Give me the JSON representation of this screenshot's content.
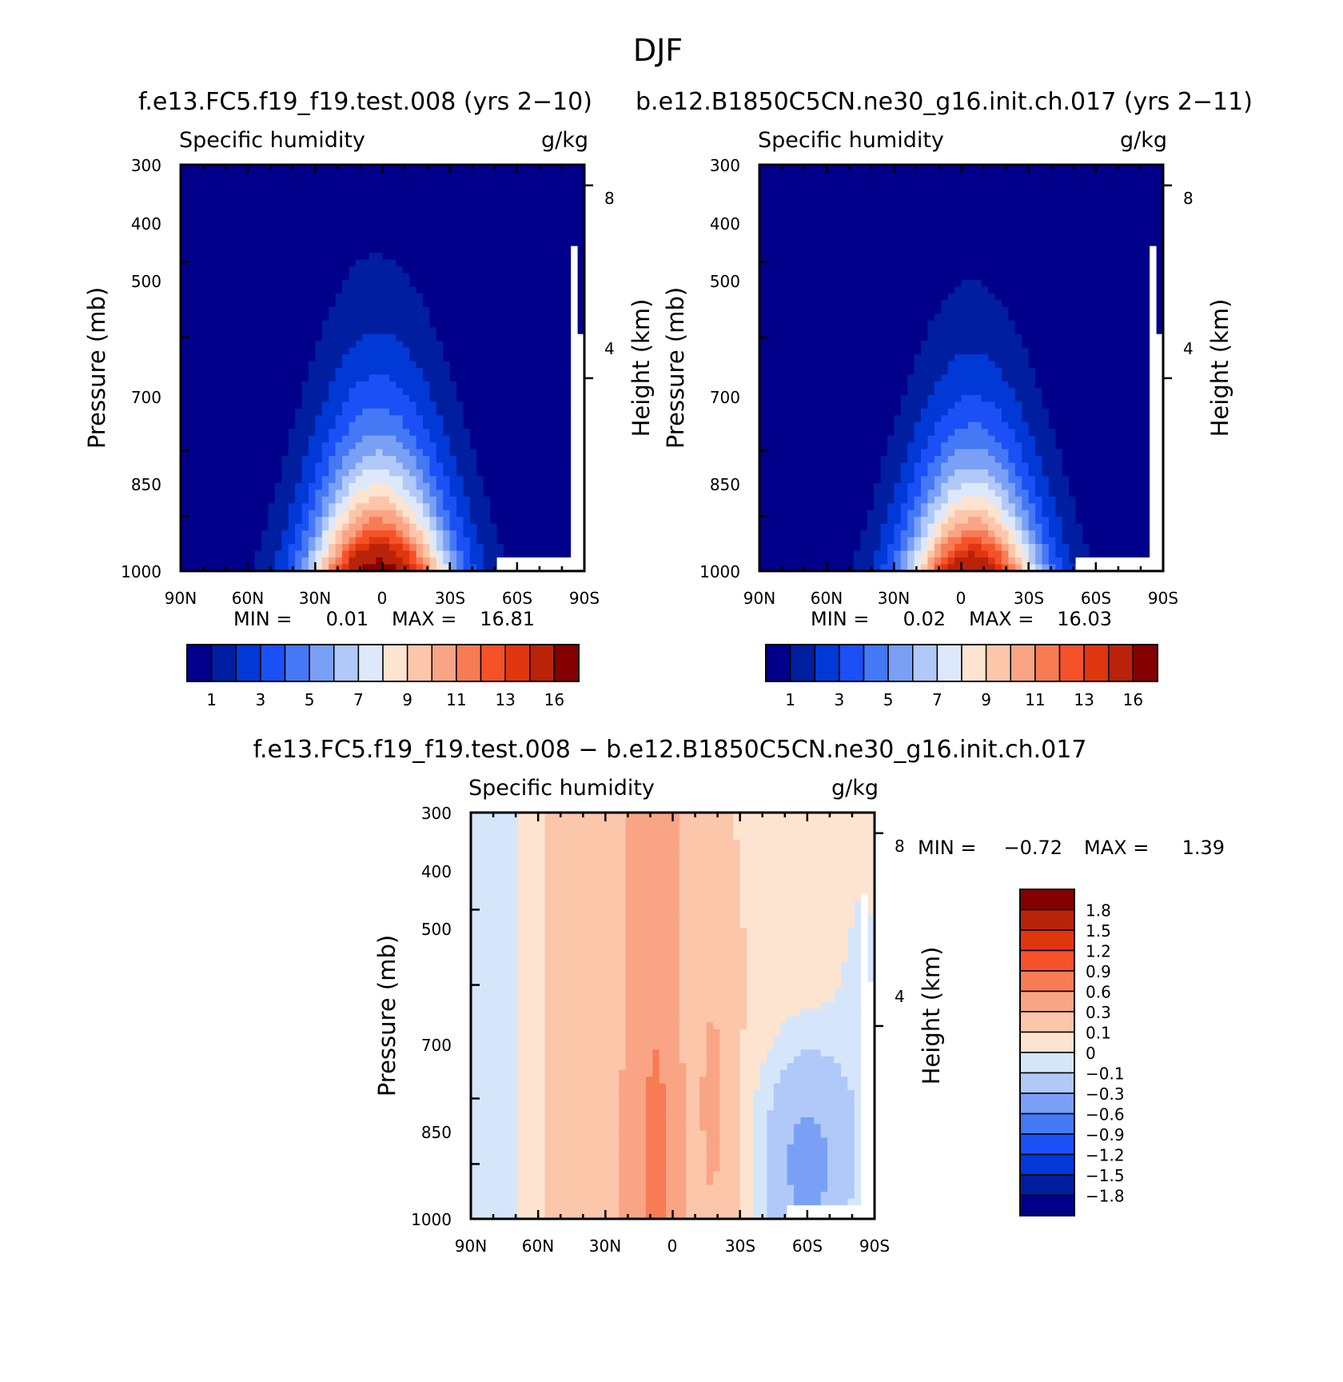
{
  "figure": {
    "season": "DJF",
    "title_left": "f.e13.FC5.f19_f19.test.008 (yrs 2−10)",
    "title_right": "b.e12.B1850C5CN.ne30_g16.init.ch.017 (yrs 2−11)",
    "title_diff": "f.e13.FC5.f19_f19.test.008 − b.e12.B1850C5CN.ne30_g16.init.ch.017"
  },
  "chart_data": [
    {
      "id": "panel-test",
      "type": "heatmap",
      "variable": "Specific humidity",
      "units": "g/kg",
      "xlabel": "",
      "ylabel": "Pressure (mb)",
      "ylabel_right": "Height (km)",
      "x_ticks": [
        "90N",
        "60N",
        "30N",
        "0",
        "30S",
        "60S",
        "90S"
      ],
      "y_ticks": [
        "300",
        "400",
        "500",
        "700",
        "850",
        "1000"
      ],
      "height_ticks": [
        "8",
        "4"
      ],
      "min_label": "MIN =",
      "min_value": "0.01",
      "max_label": "MAX =",
      "max_value": "16.81",
      "colorbar_labels": [
        "1",
        "3",
        "5",
        "7",
        "9",
        "11",
        "13",
        "16"
      ],
      "contour_levels": [
        1,
        2,
        3,
        4,
        5,
        6,
        7,
        8,
        9,
        10,
        11,
        12,
        13,
        14,
        16
      ],
      "peak_value": 16.81,
      "peak_lat": 0,
      "peak_pressure": 1000
    },
    {
      "id": "panel-control",
      "type": "heatmap",
      "variable": "Specific humidity",
      "units": "g/kg",
      "xlabel": "",
      "ylabel": "Pressure (mb)",
      "ylabel_right": "Height (km)",
      "x_ticks": [
        "90N",
        "60N",
        "30N",
        "0",
        "30S",
        "60S",
        "90S"
      ],
      "y_ticks": [
        "300",
        "400",
        "500",
        "700",
        "850",
        "1000"
      ],
      "height_ticks": [
        "8",
        "4"
      ],
      "min_label": "MIN =",
      "min_value": "0.02",
      "max_label": "MAX =",
      "max_value": "16.03",
      "colorbar_labels": [
        "1",
        "3",
        "5",
        "7",
        "9",
        "11",
        "13",
        "16"
      ],
      "contour_levels": [
        1,
        2,
        3,
        4,
        5,
        6,
        7,
        8,
        9,
        10,
        11,
        12,
        13,
        14,
        16
      ],
      "peak_value": 16.03,
      "peak_lat": -5,
      "peak_pressure": 1000
    },
    {
      "id": "panel-difference",
      "type": "heatmap",
      "variable": "Specific humidity",
      "units": "g/kg",
      "xlabel": "",
      "ylabel": "Pressure (mb)",
      "ylabel_right": "Height (km)",
      "x_ticks": [
        "90N",
        "60N",
        "30N",
        "0",
        "30S",
        "60S",
        "90S"
      ],
      "y_ticks": [
        "300",
        "400",
        "500",
        "700",
        "850",
        "1000"
      ],
      "height_ticks": [
        "8",
        "4"
      ],
      "min_label": "MIN =",
      "min_value": "−0.72",
      "max_label": "MAX =",
      "max_value": "1.39",
      "colorbar_labels": [
        "1.8",
        "1.5",
        "1.2",
        "0.9",
        "0.6",
        "0.3",
        "0.1",
        "0",
        "−0.1",
        "−0.3",
        "−0.6",
        "−0.9",
        "−1.2",
        "−1.5",
        "−1.8"
      ]
    }
  ],
  "colors": {
    "bg": "#ffffff",
    "axis": "#000000",
    "missing": "#ffffff",
    "seq16": [
      "#00008a",
      "#001ea0",
      "#0039d6",
      "#1a50f5",
      "#4478f5",
      "#7aa0f5",
      "#b0c9f8",
      "#dde9fa",
      "#fde4d0",
      "#fcc6ab",
      "#f9a585",
      "#f77c54",
      "#f5522a",
      "#e0360f",
      "#b8230a",
      "#850000"
    ],
    "div16": [
      "#850000",
      "#b8230a",
      "#e0360f",
      "#f5522a",
      "#f77c54",
      "#f9a585",
      "#fcc6ab",
      "#fde4d0",
      "#d6e6fa",
      "#b0c9f8",
      "#7aa0f5",
      "#4478f5",
      "#1a50f5",
      "#0039d6",
      "#001ea0",
      "#00008a"
    ]
  }
}
